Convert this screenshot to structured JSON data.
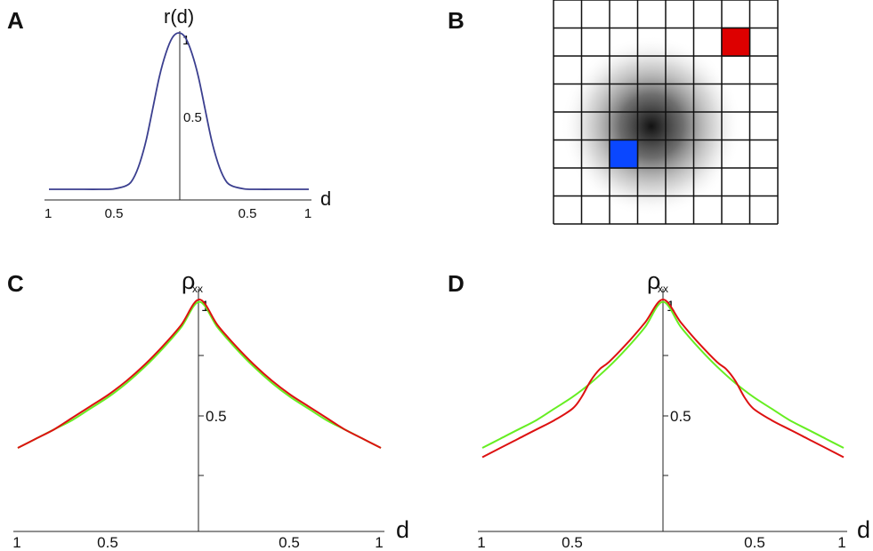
{
  "panels": {
    "A": {
      "letter": "A",
      "y_title": "r(d)",
      "x_title": "d",
      "y_tick_labels": [
        "1",
        "0.5"
      ],
      "x_tick_labels": [
        "1",
        "0.5",
        "0.5",
        "1"
      ],
      "line_color": "#3b3f8f"
    },
    "B": {
      "letter": "B",
      "grid_cells": 8,
      "red_cell": {
        "col": 6,
        "row": 1
      },
      "blue_cell": {
        "col": 2,
        "row": 5
      },
      "red_color": "#dd0000",
      "blue_color": "#0a47ff"
    },
    "C": {
      "letter": "C",
      "y_title": "ρ",
      "y_title_sub": "xx",
      "x_title": "d",
      "y_tick_labels": [
        "1",
        "0.5"
      ],
      "x_tick_labels": [
        "1",
        "0.5",
        "0.5",
        "1"
      ]
    },
    "D": {
      "letter": "D",
      "y_title": "ρ",
      "y_title_sub": "xx",
      "x_title": "d",
      "y_tick_labels": [
        "1",
        "0.5"
      ],
      "x_tick_labels": [
        "1",
        "0.5",
        "0.5",
        "1"
      ]
    }
  },
  "chart_data": [
    {
      "panel": "A",
      "type": "line",
      "title": "",
      "xlabel": "d",
      "ylabel": "r(d)",
      "xlim": [
        -1,
        1
      ],
      "ylim": [
        0,
        1
      ],
      "series": [
        {
          "color": "#3b3f8f",
          "x": [
            -1,
            -0.8,
            -0.6,
            -0.5,
            -0.4,
            -0.35,
            -0.3,
            -0.25,
            -0.2,
            -0.15,
            -0.1,
            -0.05,
            0,
            0.05,
            0.1,
            0.15,
            0.2,
            0.25,
            0.3,
            0.35,
            0.4,
            0.5,
            0.6,
            0.8,
            1
          ],
          "y": [
            0,
            0,
            0,
            0.003,
            0.025,
            0.07,
            0.17,
            0.32,
            0.52,
            0.72,
            0.87,
            0.97,
            1,
            0.97,
            0.87,
            0.72,
            0.52,
            0.32,
            0.17,
            0.07,
            0.025,
            0.003,
            0,
            0,
            0
          ]
        }
      ]
    },
    {
      "panel": "C",
      "type": "line",
      "title": "",
      "xlabel": "d",
      "ylabel": "ρxx",
      "xlim": [
        -1,
        1
      ],
      "ylim": [
        0,
        1
      ],
      "series": [
        {
          "color": "#66ee22",
          "x": [
            -1,
            -0.9,
            -0.8,
            -0.7,
            -0.6,
            -0.5,
            -0.4,
            -0.3,
            -0.2,
            -0.1,
            0,
            0.1,
            0.2,
            0.3,
            0.4,
            0.5,
            0.6,
            0.7,
            0.8,
            0.9,
            1
          ],
          "y": [
            0.36,
            0.4,
            0.44,
            0.48,
            0.53,
            0.58,
            0.64,
            0.71,
            0.79,
            0.88,
            0.99,
            0.88,
            0.79,
            0.71,
            0.64,
            0.58,
            0.53,
            0.48,
            0.44,
            0.4,
            0.36
          ]
        },
        {
          "color": "#dd1111",
          "x": [
            -1,
            -0.9,
            -0.8,
            -0.7,
            -0.6,
            -0.5,
            -0.4,
            -0.3,
            -0.2,
            -0.1,
            0,
            0.1,
            0.2,
            0.3,
            0.4,
            0.5,
            0.6,
            0.7,
            0.8,
            0.9,
            1
          ],
          "y": [
            0.36,
            0.4,
            0.44,
            0.49,
            0.54,
            0.59,
            0.65,
            0.72,
            0.8,
            0.89,
            1,
            0.89,
            0.8,
            0.72,
            0.65,
            0.59,
            0.54,
            0.49,
            0.44,
            0.4,
            0.36
          ]
        }
      ]
    },
    {
      "panel": "D",
      "type": "line",
      "title": "",
      "xlabel": "d",
      "ylabel": "ρxx",
      "xlim": [
        -1,
        1
      ],
      "ylim": [
        0,
        1
      ],
      "series": [
        {
          "color": "#66ee22",
          "x": [
            -1,
            -0.9,
            -0.8,
            -0.7,
            -0.6,
            -0.5,
            -0.4,
            -0.3,
            -0.2,
            -0.1,
            0,
            0.1,
            0.2,
            0.3,
            0.4,
            0.5,
            0.6,
            0.7,
            0.8,
            0.9,
            1
          ],
          "y": [
            0.36,
            0.4,
            0.44,
            0.48,
            0.53,
            0.58,
            0.64,
            0.71,
            0.79,
            0.88,
            0.99,
            0.88,
            0.79,
            0.71,
            0.64,
            0.58,
            0.53,
            0.48,
            0.44,
            0.4,
            0.36
          ]
        },
        {
          "color": "#dd1111",
          "x": [
            -1,
            -0.9,
            -0.8,
            -0.7,
            -0.6,
            -0.5,
            -0.45,
            -0.4,
            -0.35,
            -0.3,
            -0.2,
            -0.1,
            0,
            0.1,
            0.2,
            0.3,
            0.35,
            0.4,
            0.45,
            0.5,
            0.6,
            0.7,
            0.8,
            0.9,
            1
          ],
          "y": [
            0.32,
            0.36,
            0.4,
            0.44,
            0.48,
            0.53,
            0.58,
            0.65,
            0.7,
            0.73,
            0.81,
            0.9,
            1,
            0.9,
            0.81,
            0.73,
            0.7,
            0.65,
            0.58,
            0.53,
            0.48,
            0.44,
            0.4,
            0.36,
            0.32
          ]
        }
      ]
    }
  ]
}
